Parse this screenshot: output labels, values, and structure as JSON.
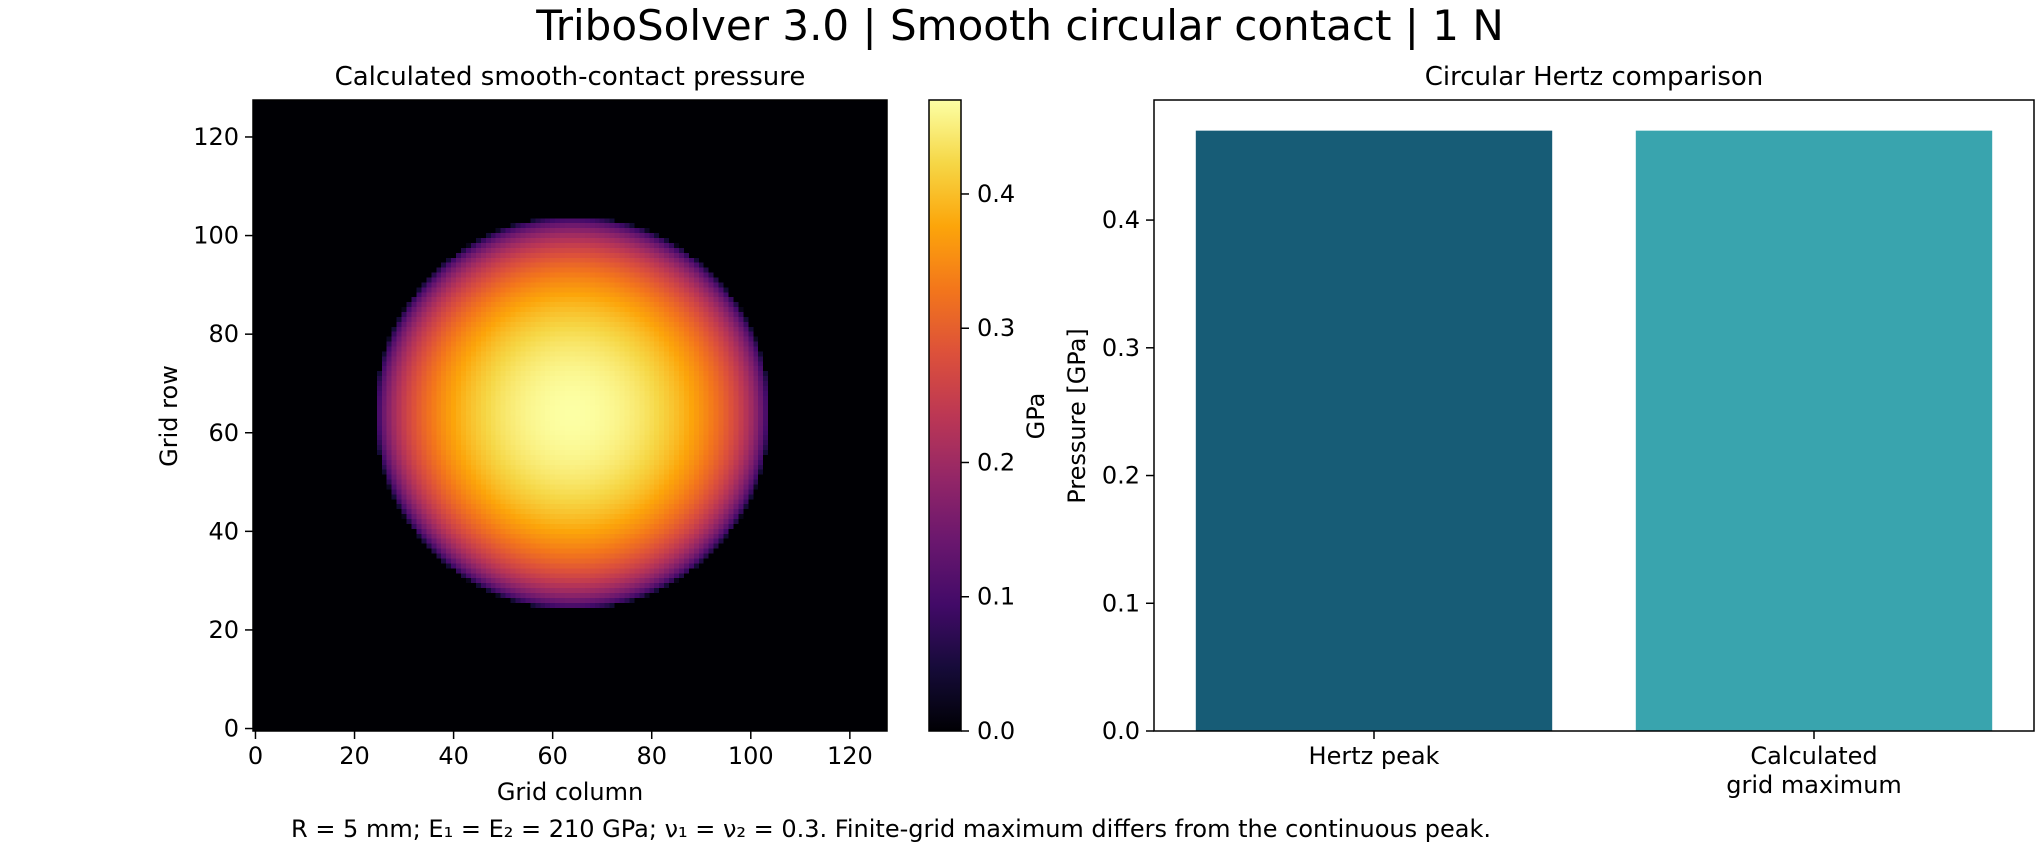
{
  "figure": {
    "title": "TriboSolver 3.0 | Smooth circular contact | 1 N",
    "footnote": "R = 5 mm; E₁ = E₂ = 210 GPa; ν₁ = ν₂ = 0.3. Finite-grid maximum differs from the continuous peak."
  },
  "chart_data": [
    {
      "type": "heatmap",
      "title": "Calculated smooth-contact pressure",
      "xlabel": "Grid column",
      "ylabel": "Grid row",
      "grid_size": 128,
      "xlim": [
        0,
        127
      ],
      "ylim": [
        0,
        127
      ],
      "x_ticks": [
        0,
        20,
        40,
        60,
        80,
        100,
        120
      ],
      "y_ticks": [
        0,
        20,
        40,
        60,
        80,
        100,
        120
      ],
      "contact_center": [
        64,
        64
      ],
      "contact_radius_cells": 40,
      "peak_value_gpa": 0.47,
      "colormap": "inferno",
      "colorbar": {
        "label": "GPa",
        "range": [
          0.0,
          0.47
        ],
        "ticks": [
          0.0,
          0.1,
          0.2,
          0.3,
          0.4
        ],
        "tick_labels": [
          "0.0",
          "0.1",
          "0.2",
          "0.3",
          "0.4"
        ]
      }
    },
    {
      "type": "bar",
      "title": "Circular Hertz comparison",
      "ylabel": "Pressure [GPa]",
      "categories": [
        "Hertz peak",
        "Calculated\ngrid maximum"
      ],
      "values": [
        0.47,
        0.47
      ],
      "colors": [
        "#175c76",
        "#39a4ae"
      ],
      "ylim": [
        0,
        0.494
      ],
      "y_ticks": [
        0.0,
        0.1,
        0.2,
        0.3,
        0.4
      ],
      "y_tick_labels": [
        "0.0",
        "0.1",
        "0.2",
        "0.3",
        "0.4"
      ]
    }
  ]
}
